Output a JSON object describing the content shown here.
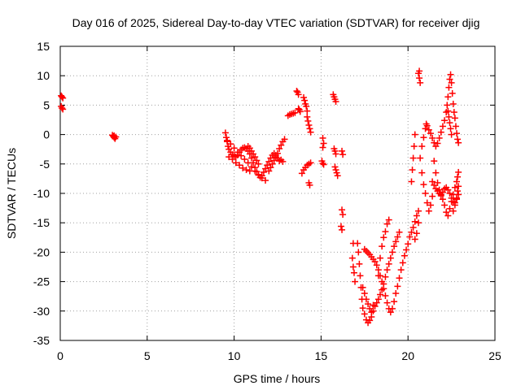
{
  "chart_data": {
    "type": "scatter",
    "title": "Day 016 of 2025, Sidereal Day-to-day VTEC variation (SDTVAR) for receiver djig",
    "xlabel": "GPS time / hours",
    "ylabel": "SDTVAR / TECUs",
    "xlim": [
      0,
      25
    ],
    "ylim": [
      -35,
      15
    ],
    "xticks": [
      0,
      5,
      10,
      15,
      20,
      25
    ],
    "yticks": [
      15,
      10,
      5,
      0,
      -5,
      -10,
      -15,
      -20,
      -25,
      -30,
      -35
    ],
    "grid": true,
    "marker": "+",
    "color": "#ff0000",
    "series": [
      {
        "values_xy": [
          [
            0.05,
            6.6
          ],
          [
            0.1,
            6.4
          ],
          [
            0.15,
            6.2
          ],
          [
            0.05,
            4.8
          ],
          [
            0.1,
            4.5
          ],
          [
            0.15,
            4.3
          ],
          [
            3.0,
            -0.1
          ],
          [
            3.05,
            -0.3
          ],
          [
            3.1,
            -0.5
          ],
          [
            3.15,
            -0.7
          ],
          [
            3.2,
            -0.4
          ],
          [
            3.1,
            -0.2
          ],
          [
            9.5,
            0.3
          ],
          [
            9.55,
            -0.5
          ],
          [
            9.6,
            -1.2
          ],
          [
            9.65,
            -2.0
          ],
          [
            9.7,
            -2.5
          ],
          [
            9.8,
            -3.0
          ],
          [
            9.9,
            -3.4
          ],
          [
            10.0,
            -3.6
          ],
          [
            10.1,
            -3.8
          ],
          [
            10.2,
            -3.5
          ],
          [
            10.3,
            -3.0
          ],
          [
            10.4,
            -2.6
          ],
          [
            10.5,
            -2.3
          ],
          [
            10.6,
            -2.2
          ],
          [
            10.7,
            -2.4
          ],
          [
            10.8,
            -2.8
          ],
          [
            10.9,
            -3.3
          ],
          [
            11.0,
            -4.0
          ],
          [
            11.1,
            -4.8
          ],
          [
            11.2,
            -5.6
          ],
          [
            11.3,
            -6.3
          ],
          [
            11.4,
            -6.9
          ],
          [
            11.5,
            -7.3
          ],
          [
            11.6,
            -7.0
          ],
          [
            11.7,
            -6.4
          ],
          [
            11.8,
            -5.8
          ],
          [
            11.9,
            -5.2
          ],
          [
            12.0,
            -4.6
          ],
          [
            12.1,
            -4.0
          ],
          [
            12.2,
            -3.5
          ],
          [
            12.3,
            -3.2
          ],
          [
            12.4,
            -3.5
          ],
          [
            12.5,
            -4.0
          ],
          [
            12.6,
            -4.5
          ],
          [
            9.6,
            -1.0
          ],
          [
            9.8,
            -1.6
          ],
          [
            10.0,
            -2.3
          ],
          [
            10.2,
            -3.0
          ],
          [
            10.4,
            -3.6
          ],
          [
            10.6,
            -4.2
          ],
          [
            10.8,
            -4.8
          ],
          [
            11.0,
            -5.5
          ],
          [
            11.2,
            -6.2
          ],
          [
            11.4,
            -6.8
          ],
          [
            11.6,
            -7.4
          ],
          [
            11.8,
            -7.8
          ],
          [
            12.0,
            -6.2
          ],
          [
            12.1,
            -5.6
          ],
          [
            12.2,
            -5.0
          ],
          [
            12.3,
            -4.4
          ],
          [
            12.4,
            -3.8
          ],
          [
            12.5,
            -3.2
          ],
          [
            12.6,
            -2.4
          ],
          [
            12.7,
            -1.8
          ],
          [
            12.8,
            -1.2
          ],
          [
            12.9,
            -0.8
          ],
          [
            12.7,
            -4.3
          ],
          [
            12.8,
            -4.6
          ],
          [
            9.7,
            -3.8
          ],
          [
            9.9,
            -4.2
          ],
          [
            10.1,
            -4.8
          ],
          [
            10.3,
            -5.2
          ],
          [
            10.5,
            -5.7
          ],
          [
            10.7,
            -6.0
          ],
          [
            10.9,
            -6.2
          ],
          [
            10.8,
            -2.0
          ],
          [
            10.9,
            -2.3
          ],
          [
            11.0,
            -2.8
          ],
          [
            11.1,
            -3.3
          ],
          [
            11.2,
            -3.8
          ],
          [
            11.3,
            -4.4
          ],
          [
            11.4,
            -5.0
          ],
          [
            13.2,
            3.4
          ],
          [
            13.3,
            3.5
          ],
          [
            13.4,
            3.6
          ],
          [
            13.5,
            3.7
          ],
          [
            13.1,
            3.2
          ],
          [
            13.6,
            7.4
          ],
          [
            13.65,
            7.2
          ],
          [
            13.7,
            6.8
          ],
          [
            13.7,
            4.4
          ],
          [
            13.75,
            4.2
          ],
          [
            13.8,
            3.9
          ],
          [
            14.0,
            6.3
          ],
          [
            14.05,
            5.8
          ],
          [
            14.1,
            5.2
          ],
          [
            14.15,
            4.8
          ],
          [
            14.2,
            4.0
          ],
          [
            14.2,
            3.0
          ],
          [
            14.25,
            2.3
          ],
          [
            14.3,
            1.6
          ],
          [
            14.35,
            1.0
          ],
          [
            14.4,
            0.4
          ],
          [
            13.9,
            -6.6
          ],
          [
            14.0,
            -6.0
          ],
          [
            14.1,
            -5.6
          ],
          [
            14.2,
            -5.2
          ],
          [
            14.3,
            -5.0
          ],
          [
            14.4,
            -4.8
          ],
          [
            14.3,
            -8.2
          ],
          [
            14.35,
            -8.6
          ],
          [
            15.1,
            -0.6
          ],
          [
            15.15,
            -1.5
          ],
          [
            15.1,
            -2.2
          ],
          [
            15.05,
            -4.5
          ],
          [
            15.1,
            -4.9
          ],
          [
            15.15,
            -5.1
          ],
          [
            15.7,
            6.8
          ],
          [
            15.75,
            6.4
          ],
          [
            15.8,
            6.0
          ],
          [
            15.85,
            5.6
          ],
          [
            15.75,
            -2.4
          ],
          [
            15.8,
            -2.8
          ],
          [
            15.85,
            -3.3
          ],
          [
            15.8,
            -5.5
          ],
          [
            15.85,
            -6.0
          ],
          [
            15.9,
            -6.5
          ],
          [
            15.95,
            -7.0
          ],
          [
            16.2,
            -2.8
          ],
          [
            16.25,
            -3.4
          ],
          [
            16.2,
            -12.8
          ],
          [
            16.25,
            -13.6
          ],
          [
            16.15,
            -15.6
          ],
          [
            16.2,
            -16.2
          ],
          [
            16.8,
            -21.0
          ],
          [
            16.85,
            -22.5
          ],
          [
            16.9,
            -23.5
          ],
          [
            16.95,
            -25.0
          ],
          [
            16.85,
            -18.5
          ],
          [
            17.1,
            -18.5
          ],
          [
            17.15,
            -20.0
          ],
          [
            17.2,
            -22.0
          ],
          [
            17.25,
            -24.0
          ],
          [
            17.3,
            -26.0
          ],
          [
            17.35,
            -28.0
          ],
          [
            17.4,
            -29.5
          ],
          [
            17.5,
            -30.5
          ],
          [
            17.6,
            -31.5
          ],
          [
            17.7,
            -32.0
          ],
          [
            17.8,
            -31.6
          ],
          [
            17.9,
            -31.0
          ],
          [
            18.0,
            -30.0
          ],
          [
            18.1,
            -29.2
          ],
          [
            18.2,
            -28.6
          ],
          [
            18.3,
            -28.0
          ],
          [
            18.4,
            -27.2
          ],
          [
            18.5,
            -26.4
          ],
          [
            18.6,
            -25.4
          ],
          [
            18.7,
            -24.2
          ],
          [
            18.8,
            -23.0
          ],
          [
            18.9,
            -22.0
          ],
          [
            19.0,
            -21.0
          ],
          [
            19.1,
            -20.0
          ],
          [
            19.2,
            -19.0
          ],
          [
            19.3,
            -18.2
          ],
          [
            19.4,
            -17.4
          ],
          [
            19.5,
            -16.6
          ],
          [
            17.4,
            -26.0
          ],
          [
            17.5,
            -27.0
          ],
          [
            17.6,
            -28.0
          ],
          [
            17.7,
            -28.8
          ],
          [
            17.8,
            -29.6
          ],
          [
            17.9,
            -30.2
          ],
          [
            18.0,
            -29.0
          ],
          [
            17.5,
            -19.5
          ],
          [
            17.6,
            -19.8
          ],
          [
            17.7,
            -20.1
          ],
          [
            17.8,
            -20.4
          ],
          [
            17.9,
            -20.8
          ],
          [
            18.0,
            -21.2
          ],
          [
            18.1,
            -21.6
          ],
          [
            18.2,
            -22.2
          ],
          [
            18.3,
            -23.0
          ],
          [
            18.4,
            -24.0
          ],
          [
            18.5,
            -25.0
          ],
          [
            18.6,
            -26.2
          ],
          [
            18.7,
            -27.4
          ],
          [
            18.8,
            -28.6
          ],
          [
            18.9,
            -29.6
          ],
          [
            19.0,
            -30.2
          ],
          [
            19.1,
            -29.6
          ],
          [
            19.2,
            -28.4
          ],
          [
            19.3,
            -27.0
          ],
          [
            19.4,
            -25.8
          ],
          [
            19.5,
            -24.4
          ],
          [
            19.6,
            -23.0
          ],
          [
            19.7,
            -21.8
          ],
          [
            19.8,
            -20.6
          ],
          [
            19.9,
            -19.6
          ],
          [
            20.0,
            -18.6
          ],
          [
            20.1,
            -17.4
          ],
          [
            20.2,
            -16.6
          ],
          [
            18.3,
            -24.0
          ],
          [
            18.4,
            -21.0
          ],
          [
            18.5,
            -19.0
          ],
          [
            18.6,
            -17.5
          ],
          [
            18.7,
            -16.5
          ],
          [
            18.9,
            -14.5
          ],
          [
            18.8,
            -15.2
          ],
          [
            20.3,
            -15.8
          ],
          [
            20.4,
            -14.8
          ],
          [
            20.5,
            -13.8
          ],
          [
            20.6,
            -13.0
          ],
          [
            20.4,
            -17.8
          ],
          [
            20.5,
            -16.8
          ],
          [
            20.6,
            -15.0
          ],
          [
            20.2,
            -8.0
          ],
          [
            20.25,
            -6.0
          ],
          [
            20.3,
            -4.0
          ],
          [
            20.35,
            -2.0
          ],
          [
            20.4,
            0.0
          ],
          [
            20.6,
            10.4
          ],
          [
            20.65,
            9.6
          ],
          [
            20.7,
            8.8
          ],
          [
            20.65,
            10.8
          ],
          [
            20.8,
            -6.5
          ],
          [
            20.9,
            -8.5
          ],
          [
            21.0,
            -10.0
          ],
          [
            21.1,
            -11.6
          ],
          [
            21.2,
            -13.0
          ],
          [
            21.3,
            -12.0
          ],
          [
            21.4,
            -10.5
          ],
          [
            20.7,
            -4.0
          ],
          [
            20.8,
            -2.0
          ],
          [
            20.9,
            -0.5
          ],
          [
            21.0,
            1.0
          ],
          [
            21.05,
            1.8
          ],
          [
            21.1,
            1.5
          ],
          [
            21.2,
            0.8
          ],
          [
            21.3,
            0.2
          ],
          [
            21.4,
            -0.6
          ],
          [
            21.5,
            -1.4
          ],
          [
            21.6,
            -2.0
          ],
          [
            21.7,
            -1.5
          ],
          [
            21.8,
            -0.6
          ],
          [
            21.9,
            0.4
          ],
          [
            22.0,
            1.4
          ],
          [
            22.1,
            2.4
          ],
          [
            22.2,
            3.8
          ],
          [
            22.25,
            5.0
          ],
          [
            22.3,
            6.4
          ],
          [
            22.35,
            8.0
          ],
          [
            22.4,
            9.4
          ],
          [
            22.45,
            10.2
          ],
          [
            22.5,
            8.8
          ],
          [
            22.55,
            7.0
          ],
          [
            22.6,
            5.2
          ],
          [
            22.65,
            3.8
          ],
          [
            22.7,
            2.8
          ],
          [
            22.75,
            1.4
          ],
          [
            22.8,
            0.2
          ],
          [
            22.85,
            -0.8
          ],
          [
            22.9,
            -1.4
          ],
          [
            21.5,
            -4.5
          ],
          [
            21.6,
            -6.5
          ],
          [
            21.7,
            -8.2
          ],
          [
            21.8,
            -9.4
          ],
          [
            21.9,
            -10.4
          ],
          [
            22.0,
            -11.0
          ],
          [
            22.1,
            -12.0
          ],
          [
            22.2,
            -13.2
          ],
          [
            22.3,
            -13.8
          ],
          [
            22.4,
            -12.6
          ],
          [
            22.5,
            -11.4
          ],
          [
            22.6,
            -10.2
          ],
          [
            22.7,
            -9.0
          ],
          [
            22.8,
            -8.0
          ],
          [
            22.85,
            -7.2
          ],
          [
            22.9,
            -6.4
          ],
          [
            21.4,
            -8.0
          ],
          [
            21.5,
            -8.6
          ],
          [
            21.6,
            -9.2
          ],
          [
            21.7,
            -9.6
          ],
          [
            21.8,
            -10.0
          ],
          [
            21.9,
            -10.2
          ],
          [
            22.0,
            -9.8
          ],
          [
            22.1,
            -9.2
          ],
          [
            22.2,
            -9.0
          ],
          [
            22.3,
            -9.4
          ],
          [
            22.4,
            -10.0
          ],
          [
            22.5,
            -10.8
          ],
          [
            22.6,
            -11.4
          ],
          [
            22.7,
            -11.6
          ],
          [
            22.8,
            -10.8
          ],
          [
            22.85,
            -9.6
          ],
          [
            22.9,
            -8.8
          ],
          [
            22.6,
            -13.0
          ],
          [
            22.7,
            -12.0
          ],
          [
            22.8,
            -11.0
          ],
          [
            22.9,
            -10.2
          ],
          [
            22.3,
            4.0
          ],
          [
            22.35,
            3.0
          ],
          [
            22.4,
            2.0
          ],
          [
            22.45,
            1.0
          ],
          [
            22.5,
            0.0
          ]
        ]
      }
    ]
  }
}
